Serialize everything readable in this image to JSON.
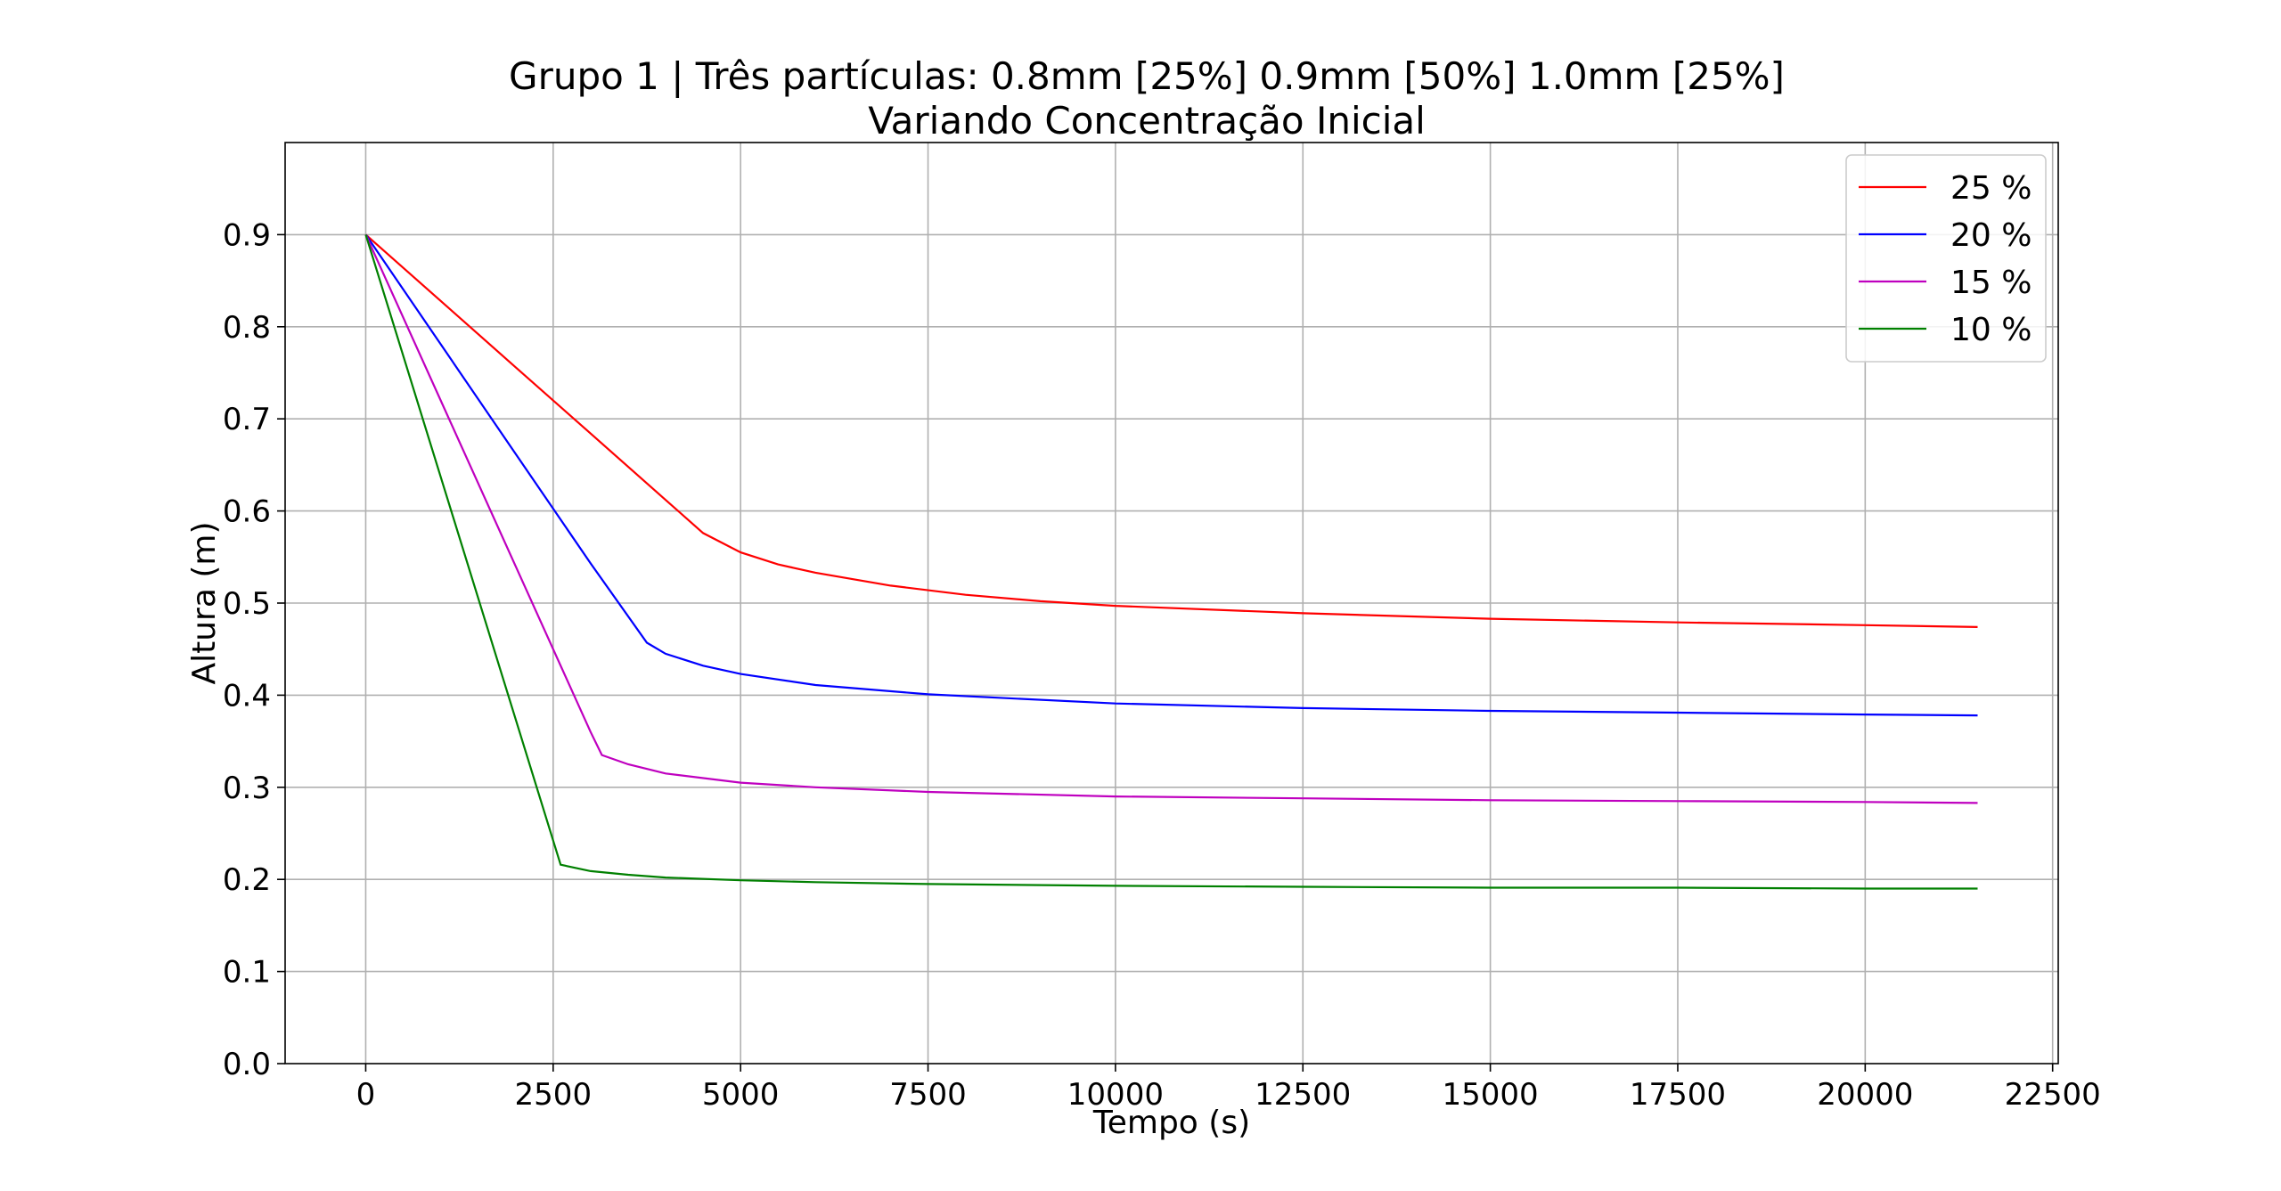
{
  "chart_data": {
    "type": "line",
    "title": [
      "Grupo 1 |  Três partículas: 0.8mm [25%]  0.9mm [50%] 1.0mm [25%]",
      "Variando Concentração Inicial"
    ],
    "xlabel": "Tempo (s)",
    "ylabel": "Altura (m)",
    "xlim": [
      -1075,
      22575
    ],
    "ylim": [
      0.0,
      1.0
    ],
    "xticks": [
      0,
      2500,
      5000,
      7500,
      10000,
      12500,
      15000,
      17500,
      20000,
      22500
    ],
    "xtick_labels": [
      "0",
      "2500",
      "5000",
      "7500",
      "10000",
      "12500",
      "15000",
      "17500",
      "20000",
      "22500"
    ],
    "yticks": [
      0.0,
      0.1,
      0.2,
      0.3,
      0.4,
      0.5,
      0.6,
      0.7,
      0.8,
      0.9
    ],
    "ytick_labels": [
      "0.0",
      "0.1",
      "0.2",
      "0.3",
      "0.4",
      "0.5",
      "0.6",
      "0.7",
      "0.8",
      "0.9"
    ],
    "grid": true,
    "legend_position": "top-right",
    "series": [
      {
        "name": "25 %",
        "color": "#ff0000",
        "x": [
          0,
          1000,
          2000,
          3000,
          4000,
          4500,
          5000,
          5500,
          6000,
          7000,
          8000,
          9000,
          10000,
          12500,
          15000,
          17500,
          20000,
          21500
        ],
        "y": [
          0.9,
          0.828,
          0.756,
          0.684,
          0.612,
          0.576,
          0.555,
          0.542,
          0.533,
          0.519,
          0.509,
          0.502,
          0.497,
          0.489,
          0.483,
          0.479,
          0.476,
          0.474
        ]
      },
      {
        "name": "20 %",
        "color": "#0000ff",
        "x": [
          0,
          1000,
          2000,
          3000,
          3750,
          4000,
          4500,
          5000,
          6000,
          7500,
          10000,
          12500,
          15000,
          17500,
          20000,
          21500
        ],
        "y": [
          0.9,
          0.781,
          0.662,
          0.543,
          0.457,
          0.445,
          0.432,
          0.423,
          0.411,
          0.401,
          0.391,
          0.386,
          0.383,
          0.381,
          0.379,
          0.378
        ]
      },
      {
        "name": "15 %",
        "color": "#bf00bf",
        "x": [
          0,
          1000,
          2000,
          3000,
          3150,
          3500,
          4000,
          5000,
          6000,
          7500,
          10000,
          12500,
          15000,
          17500,
          20000,
          21500
        ],
        "y": [
          0.9,
          0.72,
          0.54,
          0.36,
          0.335,
          0.325,
          0.315,
          0.305,
          0.3,
          0.295,
          0.29,
          0.288,
          0.286,
          0.285,
          0.284,
          0.283
        ]
      },
      {
        "name": "10 %",
        "color": "#008000",
        "x": [
          0,
          1000,
          2000,
          2600,
          3000,
          3500,
          4000,
          5000,
          6000,
          7500,
          10000,
          12500,
          15000,
          17500,
          20000,
          21500
        ],
        "y": [
          0.9,
          0.637,
          0.374,
          0.216,
          0.209,
          0.205,
          0.202,
          0.199,
          0.197,
          0.195,
          0.193,
          0.192,
          0.191,
          0.191,
          0.19,
          0.19
        ]
      }
    ]
  }
}
